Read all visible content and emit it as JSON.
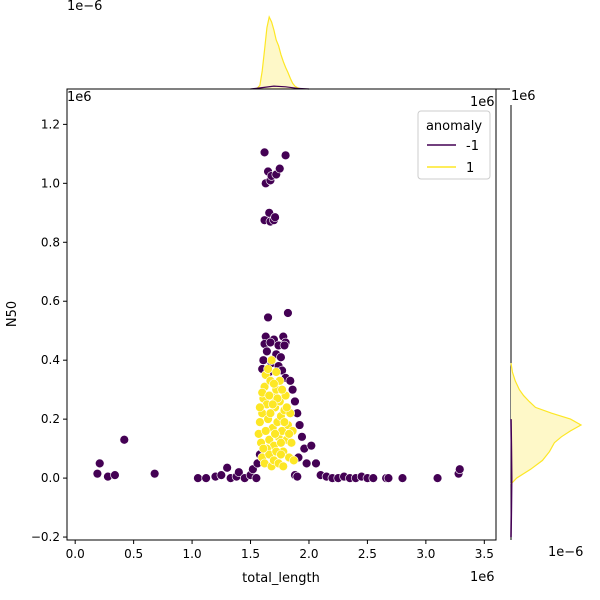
{
  "chart_data": {
    "type": "scatter",
    "xlabel": "total_length",
    "ylabel": "N50",
    "x_offset_text": "1e6",
    "y_offset_text": "1e6",
    "xlim": [
      -0.07,
      3.6
    ],
    "ylim": [
      -0.21,
      1.32
    ],
    "x_ticks": [
      0.0,
      0.5,
      1.0,
      1.5,
      2.0,
      2.5,
      3.0,
      3.5
    ],
    "x_tick_labels": [
      "0.0",
      "0.5",
      "1.0",
      "1.5",
      "2.0",
      "2.5",
      "3.0",
      "3.5"
    ],
    "y_ticks": [
      -0.2,
      0.0,
      0.2,
      0.4,
      0.6,
      0.8,
      1.0,
      1.2
    ],
    "y_tick_labels": [
      "−0.2",
      "0.0",
      "0.2",
      "0.4",
      "0.6",
      "0.8",
      "1.0",
      "1.2"
    ],
    "grid": false,
    "legend": {
      "title": "anomaly",
      "placement": "top-right",
      "entries": [
        {
          "label": "-1",
          "color": "#440154"
        },
        {
          "label": "1",
          "color": "#fde725"
        }
      ]
    },
    "colors": {
      "anomaly_neg": "#440154",
      "anomaly_pos": "#fde725",
      "kde_fill": "#fef8c8"
    },
    "series": [
      {
        "name": "-1",
        "color": "#440154",
        "points": [
          [
            0.19,
            0.015
          ],
          [
            0.21,
            0.05
          ],
          [
            0.28,
            0.005
          ],
          [
            0.34,
            0.01
          ],
          [
            0.42,
            0.13
          ],
          [
            0.68,
            0.015
          ],
          [
            1.05,
            0.0
          ],
          [
            1.12,
            0.0
          ],
          [
            1.2,
            0.005
          ],
          [
            1.25,
            0.01
          ],
          [
            1.3,
            0.035
          ],
          [
            1.33,
            0.0
          ],
          [
            1.38,
            0.005
          ],
          [
            1.4,
            0.02
          ],
          [
            1.45,
            0.0
          ],
          [
            1.5,
            0.01
          ],
          [
            1.55,
            0.0
          ],
          [
            1.62,
            1.105
          ],
          [
            1.63,
            1.0
          ],
          [
            1.65,
            1.04
          ],
          [
            1.67,
            1.01
          ],
          [
            1.68,
            1.025
          ],
          [
            1.72,
            1.03
          ],
          [
            1.75,
            1.05
          ],
          [
            1.8,
            1.095
          ],
          [
            1.62,
            0.875
          ],
          [
            1.66,
            0.9
          ],
          [
            1.67,
            0.87
          ],
          [
            1.7,
            0.875
          ],
          [
            1.71,
            0.885
          ],
          [
            1.65,
            0.545
          ],
          [
            1.82,
            0.56
          ],
          [
            1.63,
            0.48
          ],
          [
            1.7,
            0.47
          ],
          [
            1.78,
            0.48
          ],
          [
            1.8,
            0.46
          ],
          [
            1.62,
            0.455
          ],
          [
            1.67,
            0.46
          ],
          [
            1.74,
            0.45
          ],
          [
            1.79,
            0.45
          ],
          [
            1.64,
            0.43
          ],
          [
            1.72,
            0.42
          ],
          [
            1.76,
            0.41
          ],
          [
            1.61,
            0.4
          ],
          [
            1.68,
            0.39
          ],
          [
            1.74,
            0.38
          ],
          [
            1.6,
            0.37
          ],
          [
            1.66,
            0.36
          ],
          [
            1.77,
            0.365
          ],
          [
            1.8,
            0.34
          ],
          [
            1.84,
            0.33
          ],
          [
            1.86,
            0.3
          ],
          [
            1.88,
            0.26
          ],
          [
            1.9,
            0.22
          ],
          [
            1.92,
            0.18
          ],
          [
            1.94,
            0.14
          ],
          [
            1.96,
            0.1
          ],
          [
            1.91,
            0.07
          ],
          [
            1.98,
            0.05
          ],
          [
            2.02,
            0.11
          ],
          [
            2.06,
            0.05
          ],
          [
            1.52,
            0.03
          ],
          [
            1.56,
            0.05
          ],
          [
            1.58,
            0.08
          ],
          [
            1.88,
            0.01
          ],
          [
            1.9,
            0.005
          ],
          [
            2.1,
            0.01
          ],
          [
            2.15,
            0.005
          ],
          [
            2.2,
            0.0
          ],
          [
            2.25,
            0.0
          ],
          [
            2.3,
            0.005
          ],
          [
            2.35,
            0.0
          ],
          [
            2.4,
            0.0
          ],
          [
            2.45,
            0.005
          ],
          [
            2.5,
            0.0
          ],
          [
            2.55,
            0.0
          ],
          [
            2.66,
            0.0
          ],
          [
            2.68,
            0.0
          ],
          [
            2.8,
            0.0
          ],
          [
            3.1,
            0.0
          ],
          [
            3.28,
            0.015
          ],
          [
            3.29,
            0.03
          ]
        ]
      },
      {
        "name": "1",
        "color": "#fde725",
        "points": [
          [
            1.57,
            0.15
          ],
          [
            1.58,
            0.19
          ],
          [
            1.6,
            0.22
          ],
          [
            1.61,
            0.27
          ],
          [
            1.62,
            0.31
          ],
          [
            1.63,
            0.35
          ],
          [
            1.64,
            0.25
          ],
          [
            1.65,
            0.2
          ],
          [
            1.66,
            0.13
          ],
          [
            1.67,
            0.33
          ],
          [
            1.68,
            0.28
          ],
          [
            1.69,
            0.17
          ],
          [
            1.7,
            0.11
          ],
          [
            1.71,
            0.24
          ],
          [
            1.72,
            0.3
          ],
          [
            1.73,
            0.19
          ],
          [
            1.74,
            0.14
          ],
          [
            1.75,
            0.26
          ],
          [
            1.76,
            0.21
          ],
          [
            1.77,
            0.16
          ],
          [
            1.78,
            0.09
          ],
          [
            1.79,
            0.23
          ],
          [
            1.8,
            0.28
          ],
          [
            1.81,
            0.13
          ],
          [
            1.82,
            0.18
          ],
          [
            1.83,
            0.07
          ],
          [
            1.84,
            0.22
          ],
          [
            1.85,
            0.12
          ],
          [
            1.86,
            0.16
          ],
          [
            1.87,
            0.06
          ],
          [
            1.6,
            0.07
          ],
          [
            1.62,
            0.05
          ],
          [
            1.64,
            0.1
          ],
          [
            1.66,
            0.08
          ],
          [
            1.68,
            0.04
          ],
          [
            1.7,
            0.06
          ],
          [
            1.72,
            0.09
          ],
          [
            1.74,
            0.05
          ],
          [
            1.76,
            0.08
          ],
          [
            1.78,
            0.04
          ],
          [
            1.65,
            0.37
          ],
          [
            1.68,
            0.4
          ],
          [
            1.72,
            0.36
          ],
          [
            1.75,
            0.33
          ],
          [
            1.6,
            0.29
          ],
          [
            1.63,
            0.16
          ],
          [
            1.67,
            0.22
          ],
          [
            1.71,
            0.15
          ],
          [
            1.73,
            0.27
          ],
          [
            1.77,
            0.3
          ],
          [
            1.59,
            0.12
          ],
          [
            1.61,
            0.1
          ],
          [
            1.69,
            0.25
          ],
          [
            1.7,
            0.32
          ],
          [
            1.76,
            0.12
          ],
          [
            1.79,
            0.19
          ],
          [
            1.81,
            0.24
          ],
          [
            1.83,
            0.15
          ],
          [
            1.58,
            0.24
          ],
          [
            1.66,
            0.28
          ]
        ]
      }
    ],
    "marginal_top": {
      "offset_text": "1e−6",
      "kde_pos_x": [
        1.55,
        1.58,
        1.6,
        1.62,
        1.64,
        1.66,
        1.68,
        1.7,
        1.72,
        1.74,
        1.76,
        1.78,
        1.8,
        1.82,
        1.84,
        1.86,
        1.88,
        1.9,
        1.93
      ],
      "kde_pos_y": [
        0.0,
        0.05,
        0.25,
        0.55,
        0.85,
        1.0,
        0.93,
        0.82,
        0.68,
        0.6,
        0.48,
        0.38,
        0.3,
        0.23,
        0.15,
        0.08,
        0.04,
        0.02,
        0.0
      ],
      "kde_neg_x": [
        1.5,
        1.6,
        1.7,
        1.8,
        1.9,
        2.0
      ],
      "kde_neg_y": [
        0.0,
        0.02,
        0.04,
        0.03,
        0.01,
        0.0
      ]
    },
    "marginal_right": {
      "offset_text": "1e−6",
      "kde_pos_y": [
        -0.02,
        0.0,
        0.03,
        0.06,
        0.09,
        0.12,
        0.14,
        0.16,
        0.18,
        0.2,
        0.22,
        0.24,
        0.26,
        0.28,
        0.3,
        0.33,
        0.36,
        0.39
      ],
      "kde_pos_d": [
        0.0,
        0.08,
        0.28,
        0.45,
        0.55,
        0.62,
        0.72,
        0.85,
        1.0,
        0.85,
        0.58,
        0.35,
        0.26,
        0.18,
        0.12,
        0.06,
        0.02,
        0.0
      ],
      "kde_neg_y": [
        -0.2,
        -0.1,
        0.0,
        0.1,
        0.2
      ],
      "kde_neg_d": [
        0.0,
        0.005,
        0.01,
        0.005,
        0.0
      ]
    }
  }
}
